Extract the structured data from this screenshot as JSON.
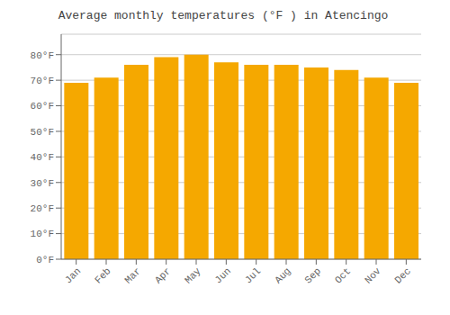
{
  "chart_data": {
    "type": "bar",
    "title": "Average monthly temperatures (°F ) in Atencingo",
    "categories": [
      "Jan",
      "Feb",
      "Mar",
      "Apr",
      "May",
      "Jun",
      "Jul",
      "Aug",
      "Sep",
      "Oct",
      "Nov",
      "Dec"
    ],
    "values": [
      69,
      71,
      76,
      79,
      80,
      77,
      76,
      76,
      75,
      74,
      71,
      69
    ],
    "color": "#F5A800",
    "ylim": [
      0,
      88
    ],
    "yticks": [
      {
        "value": 0,
        "label": "0°F"
      },
      {
        "value": 10,
        "label": "10°F"
      },
      {
        "value": 20,
        "label": "20°F"
      },
      {
        "value": 30,
        "label": "30°F"
      },
      {
        "value": 40,
        "label": "40°F"
      },
      {
        "value": 50,
        "label": "50°F"
      },
      {
        "value": 60,
        "label": "60°F"
      },
      {
        "value": 70,
        "label": "70°F"
      },
      {
        "value": 80,
        "label": "80°F"
      }
    ],
    "grid": true
  }
}
